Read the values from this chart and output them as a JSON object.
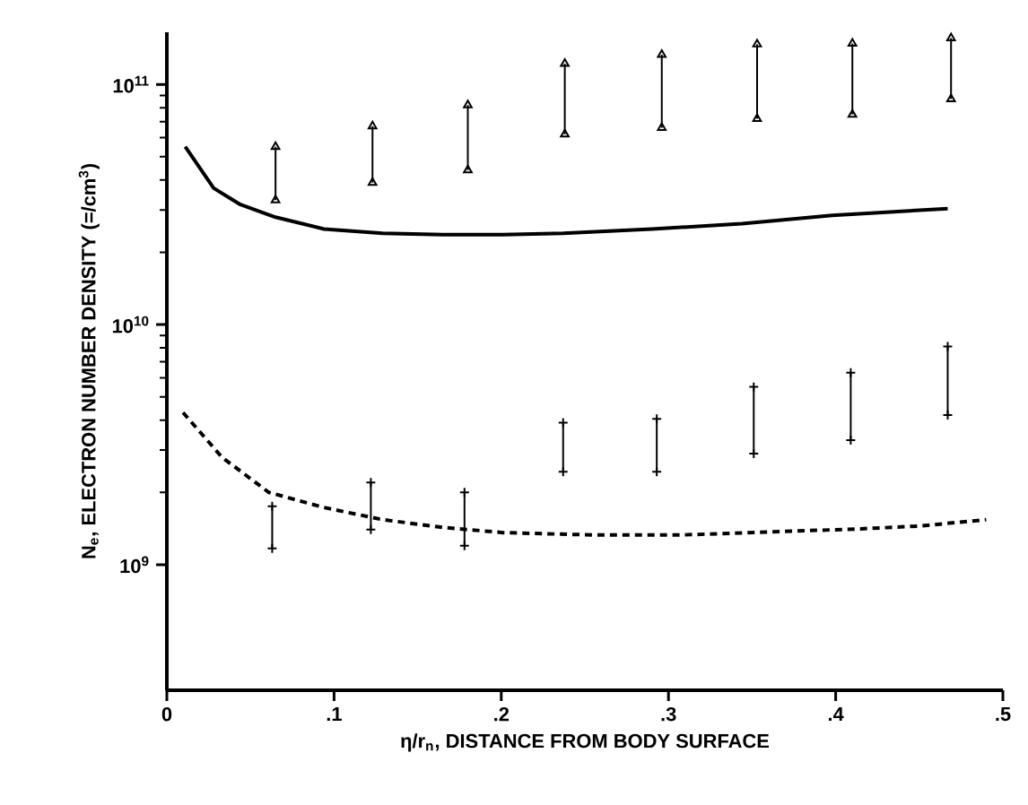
{
  "chart_data": {
    "type": "line",
    "xlabel": "η/r$_{n}$, DISTANCE FROM BODY SURFACE",
    "ylabel": "N$_{e}$, ELECTRON NUMBER DENSITY (=/cm$^{3}$)",
    "log": "y",
    "xlim": [
      0,
      0.5
    ],
    "ylim": [
      300000000.0,
      165000000000.0
    ],
    "xticks": [
      0,
      {
        "value": 0.1,
        "label": ".1"
      },
      {
        "value": 0.2,
        "label": ".2"
      },
      {
        "value": 0.3,
        "label": ".3"
      },
      {
        "value": 0.4,
        "label": ".4"
      },
      {
        "value": 0.5,
        "label": ".5"
      }
    ],
    "yticks": [
      {
        "value": 1000000000.0,
        "label": "10$^{9}$"
      },
      {
        "value": 10000000000.0,
        "label": "10$^{10}$"
      },
      {
        "value": 100000000000.0,
        "label": "10$^{11}$"
      }
    ],
    "series": [
      {
        "color": "#000000",
        "line_style": "solid",
        "x": [
          0.011,
          0.028,
          0.044,
          0.065,
          0.094,
          0.129,
          0.165,
          0.201,
          0.237,
          0.29,
          0.344,
          0.398,
          0.467
        ],
        "values": [
          55000000000.0,
          37000000000.0,
          31600000000.0,
          28000000000.0,
          25000000000.0,
          24000000000.0,
          23700000000.0,
          23700000000.0,
          24000000000.0,
          25000000000.0,
          26300000000.0,
          28500000000.0,
          30400000000.0
        ]
      },
      {
        "color": "#000000",
        "line_style": "dashed",
        "x": [
          0.0097,
          0.033,
          0.061,
          0.094,
          0.129,
          0.165,
          0.201,
          0.255,
          0.308,
          0.362,
          0.415,
          0.451,
          0.49
        ],
        "values": [
          4300000000.0,
          2800000000.0,
          2000000000.0,
          1730000000.0,
          1540000000.0,
          1430000000.0,
          1360000000.0,
          1330000000.0,
          1330000000.0,
          1370000000.0,
          1410000000.0,
          1450000000.0,
          1540000000.0
        ]
      },
      {
        "type": "scatter",
        "color": "#000000",
        "marker": "triangle",
        "x": [
          0.065,
          0.123,
          0.18,
          0.238,
          0.296,
          0.353,
          0.41,
          0.469
        ],
        "values": [
          33000000000.0,
          39000000000.0,
          44000000000.0,
          62000000000.0,
          66000000000.0,
          72000000000.0,
          75000000000.0,
          87000000000.0
        ],
        "errors": [
          [
            33000000000.0,
            55000000000.0
          ],
          [
            39000000000.0,
            67000000000.0
          ],
          [
            44000000000.0,
            82000000000.0
          ],
          [
            62000000000.0,
            122000000000.0
          ],
          [
            66000000000.0,
            133000000000.0
          ],
          [
            72000000000.0,
            147000000000.0
          ],
          [
            75000000000.0,
            148000000000.0
          ],
          [
            87000000000.0,
            156000000000.0
          ]
        ]
      },
      {
        "type": "scatter",
        "color": "#000000",
        "marker": "triangle",
        "x": [
          0.065,
          0.123,
          0.18,
          0.238,
          0.296,
          0.353,
          0.41,
          0.469
        ],
        "values": [
          55000000000.0,
          67000000000.0,
          82000000000.0,
          122000000000.0,
          133000000000.0,
          147000000000.0,
          148000000000.0,
          156000000000.0
        ]
      },
      {
        "type": "scatter",
        "color": "#000000",
        "marker": "cross",
        "x": [
          0.063,
          0.122,
          0.178,
          0.237,
          0.293,
          0.351,
          0.409,
          0.467
        ],
        "values": [
          1750000000.0,
          2200000000.0,
          2000000000.0,
          3900000000.0,
          4050000000.0,
          5500000000.0,
          6300000000.0,
          8100000000.0
        ]
      },
      {
        "type": "scatter",
        "color": "#000000",
        "marker": "cross",
        "x": [
          0.063,
          0.122,
          0.178,
          0.237,
          0.293,
          0.351,
          0.409,
          0.467
        ],
        "values": [
          1170000000.0,
          1400000000.0,
          1200000000.0,
          2440000000.0,
          2440000000.0,
          2900000000.0,
          3300000000.0,
          4200000000.0
        ],
        "errors": [
          [
            1170000000.0,
            1750000000.0
          ],
          [
            1400000000.0,
            2200000000.0
          ],
          [
            1200000000.0,
            2000000000.0
          ],
          [
            2440000000.0,
            3900000000.0
          ],
          [
            2440000000.0,
            4050000000.0
          ],
          [
            2900000000.0,
            5500000000.0
          ],
          [
            3300000000.0,
            6300000000.0
          ],
          [
            4200000000.0,
            8100000000.0
          ]
        ]
      }
    ]
  }
}
